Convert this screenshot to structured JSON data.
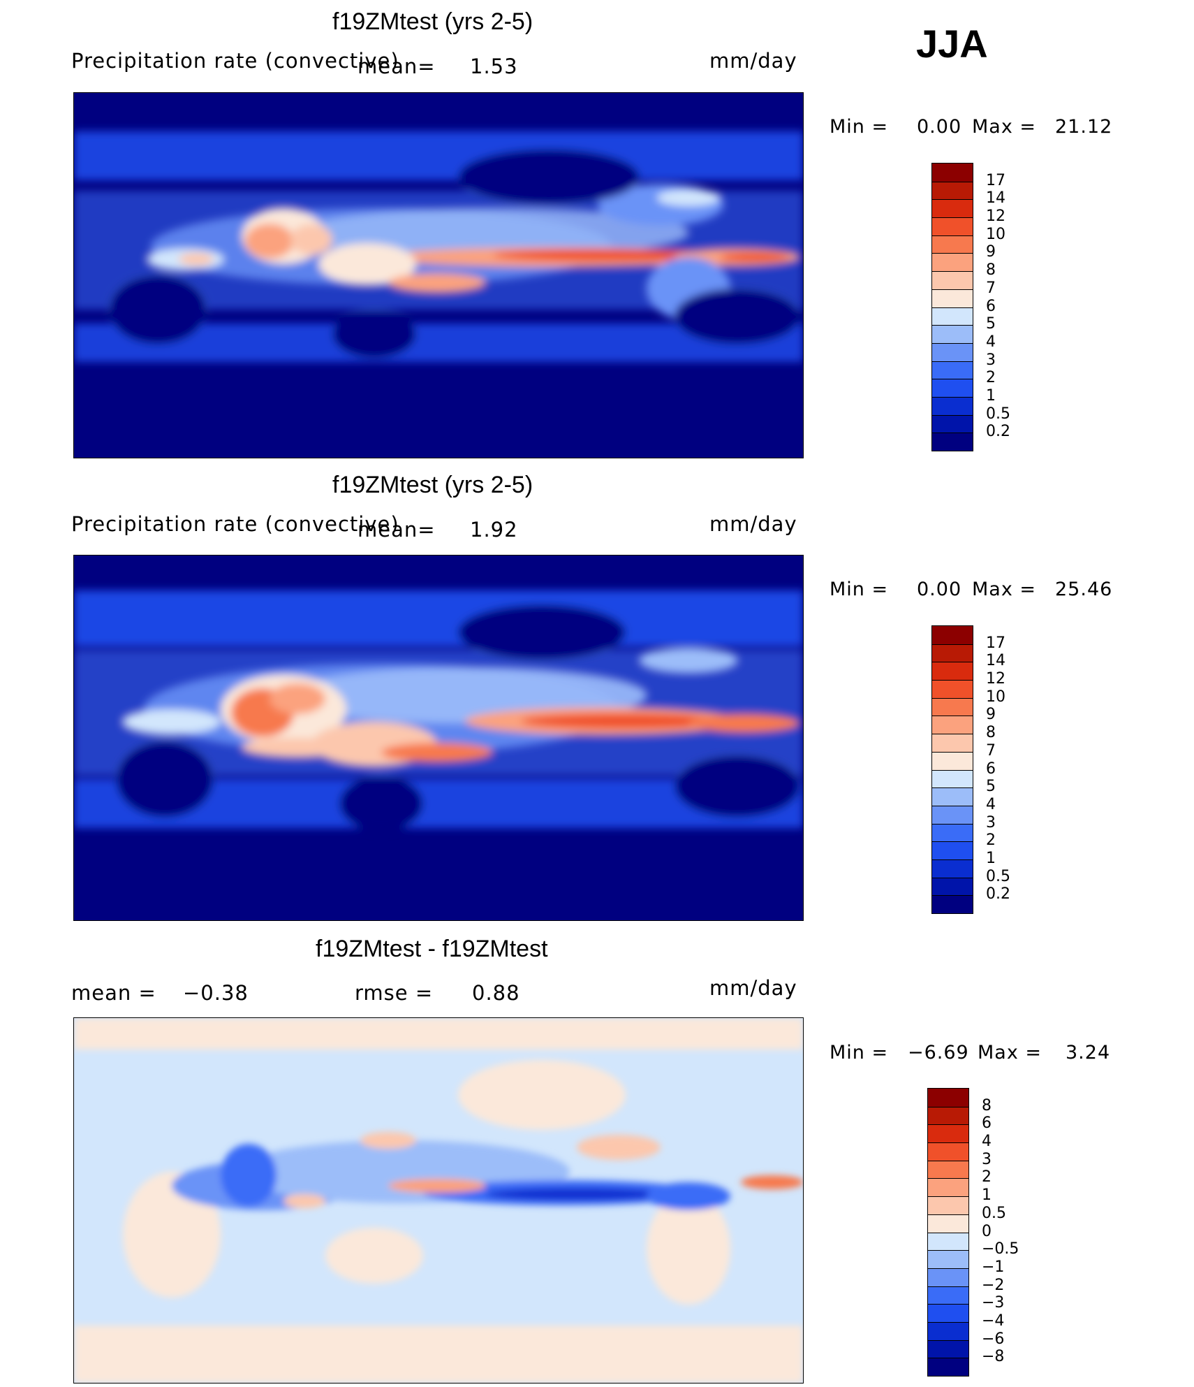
{
  "season": "JJA",
  "panels": [
    {
      "title": "f19ZMtest (yrs 2-5)",
      "left_label": "Precipitation rate (convective)",
      "mean_label": "mean=",
      "mean_value": "1.53",
      "units": "mm/day",
      "min_label": "Min =",
      "min_value": "0.00",
      "max_label": "Max =",
      "max_value": "21.12"
    },
    {
      "title": "f19ZMtest (yrs 2-5)",
      "left_label": "Precipitation rate (convective)",
      "mean_label": "mean=",
      "mean_value": "1.92",
      "units": "mm/day",
      "min_label": "Min =",
      "min_value": "0.00",
      "max_label": "Max =",
      "max_value": "25.46"
    },
    {
      "title": "f19ZMtest - f19ZMtest",
      "mean_label": "mean =",
      "mean_value": "−0.38",
      "rmse_label": "rmse =",
      "rmse_value": "0.88",
      "units": "mm/day",
      "min_label": "Min =",
      "min_value": "−6.69",
      "max_label": "Max =",
      "max_value": "3.24"
    }
  ],
  "chart_data": [
    {
      "type": "heatmap",
      "title": "f19ZMtest (yrs 2-5)",
      "variable": "Precipitation rate (convective)",
      "units": "mm/day",
      "mean": 1.53,
      "min": 0.0,
      "max": 21.12,
      "colorbar_levels": [
        "0.2",
        "0.5",
        "1",
        "2",
        "3",
        "4",
        "5",
        "6",
        "7",
        "8",
        "9",
        "10",
        "12",
        "14",
        "17"
      ],
      "colorbar_colors": [
        "#000080",
        "#0014aa",
        "#0a2ed0",
        "#1f4ff0",
        "#3a6cf7",
        "#6a93f7",
        "#9cbdf9",
        "#d2e6fc",
        "#fbe8da",
        "#fcc7ad",
        "#fba27e",
        "#f7794e",
        "#f0512a",
        "#d92b0e",
        "#b81a05",
        "#8c0000"
      ]
    },
    {
      "type": "heatmap",
      "title": "f19ZMtest (yrs 2-5)",
      "variable": "Precipitation rate (convective)",
      "units": "mm/day",
      "mean": 1.92,
      "min": 0.0,
      "max": 25.46,
      "colorbar_levels": [
        "0.2",
        "0.5",
        "1",
        "2",
        "3",
        "4",
        "5",
        "6",
        "7",
        "8",
        "9",
        "10",
        "12",
        "14",
        "17"
      ],
      "colorbar_colors": [
        "#000080",
        "#0014aa",
        "#0a2ed0",
        "#1f4ff0",
        "#3a6cf7",
        "#6a93f7",
        "#9cbdf9",
        "#d2e6fc",
        "#fbe8da",
        "#fcc7ad",
        "#fba27e",
        "#f7794e",
        "#f0512a",
        "#d92b0e",
        "#b81a05",
        "#8c0000"
      ]
    },
    {
      "type": "heatmap",
      "title": "f19ZMtest - f19ZMtest",
      "units": "mm/day",
      "mean": -0.38,
      "rmse": 0.88,
      "min": -6.69,
      "max": 3.24,
      "colorbar_levels": [
        "−8",
        "−6",
        "−4",
        "−3",
        "−2",
        "−1",
        "−0.5",
        "0",
        "0.5",
        "1",
        "2",
        "3",
        "4",
        "6",
        "8"
      ],
      "colorbar_colors": [
        "#000080",
        "#0014aa",
        "#0a2ed0",
        "#1f4ff0",
        "#3a6cf7",
        "#6a93f7",
        "#9cbdf9",
        "#d2e6fc",
        "#fbe8da",
        "#fcc7ad",
        "#fba27e",
        "#f7794e",
        "#f0512a",
        "#d92b0e",
        "#b81a05",
        "#8c0000"
      ]
    }
  ]
}
